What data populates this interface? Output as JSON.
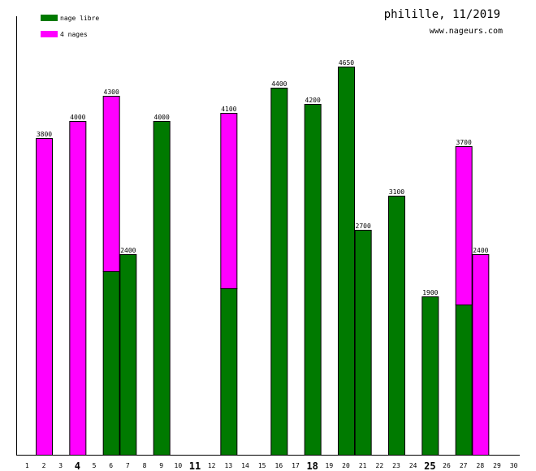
{
  "header": {
    "title": "philille, 11/2019",
    "site": "www.nageurs.com"
  },
  "colors": {
    "nage_libre": "#007a00",
    "quatre_nages": "#ff00ff",
    "axis": "#000000"
  },
  "chart_data": {
    "type": "bar",
    "stacked": true,
    "title": "philille, 11/2019",
    "categories": [
      "1",
      "2",
      "3",
      "4",
      "5",
      "6",
      "7",
      "8",
      "9",
      "10",
      "11",
      "12",
      "13",
      "14",
      "15",
      "16",
      "17",
      "18",
      "19",
      "20",
      "21",
      "22",
      "23",
      "24",
      "25",
      "26",
      "27",
      "28",
      "29",
      "30"
    ],
    "bold_categories": [
      "4",
      "11",
      "18",
      "25"
    ],
    "series": [
      {
        "name": "nage libre",
        "color": "#007a00",
        "values": [
          0,
          0,
          0,
          0,
          0,
          2200,
          2400,
          0,
          4000,
          0,
          0,
          0,
          2000,
          0,
          0,
          4400,
          0,
          4200,
          0,
          4650,
          2700,
          0,
          3100,
          0,
          1900,
          0,
          1800,
          0,
          0,
          0
        ]
      },
      {
        "name": "4 nages",
        "color": "#ff00ff",
        "values": [
          0,
          3800,
          0,
          4000,
          0,
          2100,
          0,
          0,
          0,
          0,
          0,
          0,
          2100,
          0,
          0,
          0,
          0,
          0,
          0,
          0,
          0,
          0,
          0,
          0,
          0,
          0,
          1900,
          2400,
          0,
          0
        ]
      }
    ],
    "totals": [
      "",
      "3800",
      "",
      "4000",
      "",
      "4300",
      "2400",
      "",
      "4000",
      "",
      "",
      "",
      "4100",
      "",
      "",
      "4400",
      "",
      "4200",
      "",
      "4650",
      "2700",
      "",
      "3100",
      "",
      "1900",
      "",
      "3700",
      "2400",
      "",
      ""
    ],
    "ylim": [
      0,
      5000
    ],
    "grid": false,
    "legend_position": "top-left"
  }
}
